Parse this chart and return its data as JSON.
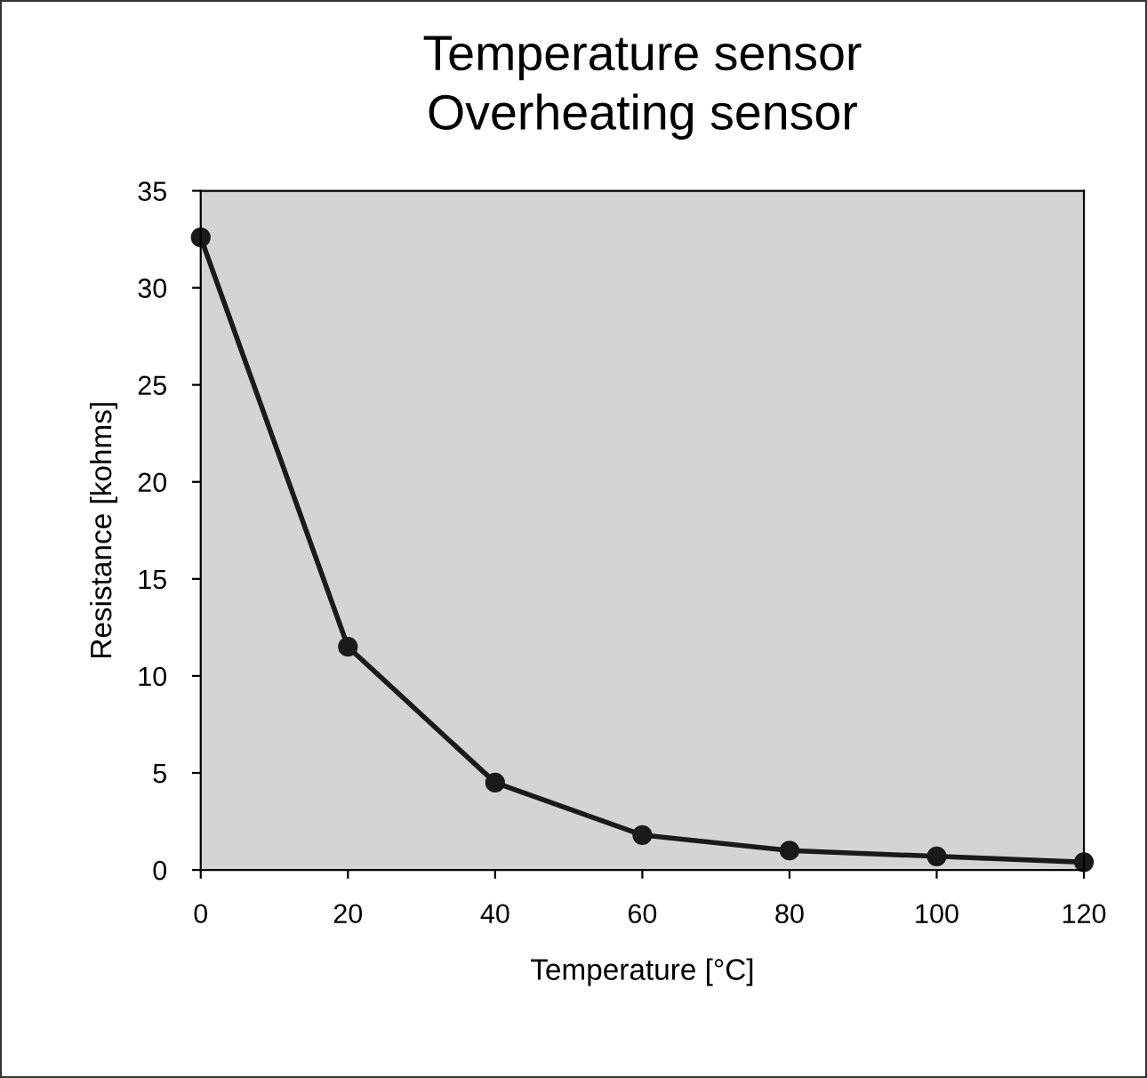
{
  "chart_data": {
    "type": "line",
    "title": "Temperature sensor",
    "subtitle": "Overheating sensor",
    "xlabel": "Temperature [°C]",
    "ylabel": "Resistance [kohms]",
    "x": [
      0,
      20,
      40,
      60,
      80,
      100,
      120
    ],
    "series": [
      {
        "color": "#1a1a1a",
        "values": [
          32.6,
          11.5,
          4.5,
          1.8,
          1.0,
          0.7,
          0.4
        ]
      }
    ],
    "xlim": [
      0,
      120
    ],
    "xticks": [
      0,
      20,
      40,
      60,
      80,
      100,
      120
    ],
    "ylim": [
      0,
      35
    ],
    "yticks": [
      0,
      5,
      10,
      15,
      20,
      25,
      30,
      35
    ],
    "grid": false,
    "legend": false,
    "marker": "circle",
    "line_style": "solid"
  }
}
